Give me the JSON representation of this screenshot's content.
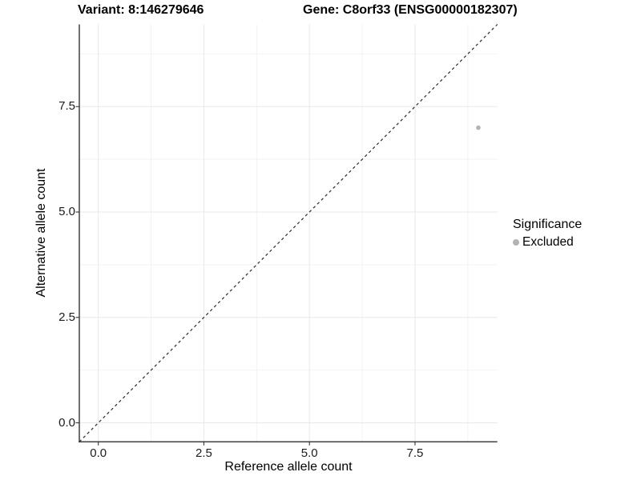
{
  "header": {
    "title_left": "Variant: 8:146279646",
    "title_right": "Gene: C8orf33 (ENSG00000182307)"
  },
  "chart_data": {
    "type": "scatter",
    "title": "Variant: 8:146279646 / Gene: C8orf33 (ENSG00000182307)",
    "xlabel": "Reference allele count",
    "ylabel": "Alternative allele count",
    "xlim": [
      -0.45,
      9.45
    ],
    "ylim": [
      -0.45,
      9.45
    ],
    "x_ticks": [
      0,
      2.5,
      5,
      7.5
    ],
    "y_ticks": [
      0,
      2.5,
      5,
      7.5
    ],
    "x_tick_labels": [
      "0.0",
      "2.5",
      "5.0",
      "7.5"
    ],
    "y_tick_labels": [
      "0.0",
      "2.5",
      "5.0",
      "7.5"
    ],
    "grid": "major and minor, light gray, white background",
    "series": [
      {
        "name": "Excluded",
        "points": [
          {
            "x": 9,
            "y": 7
          }
        ]
      }
    ],
    "reference_line": {
      "kind": "identity y=x",
      "style": "dashed",
      "from": [
        -0.45,
        -0.45
      ],
      "to": [
        9.45,
        9.45
      ]
    },
    "legend": {
      "title": "Significance",
      "position": "right",
      "entries": [
        {
          "label": "Excluded",
          "color": "#b3b3b3"
        }
      ]
    },
    "colors": {
      "point": "#b3b3b3",
      "reference_line": "#2b2b2b",
      "axis_line": "#404040",
      "tick_mark": "#333333",
      "grid_major": "#e8e8e8",
      "grid_minor": "#f2f2f2",
      "background": "#ffffff"
    }
  }
}
